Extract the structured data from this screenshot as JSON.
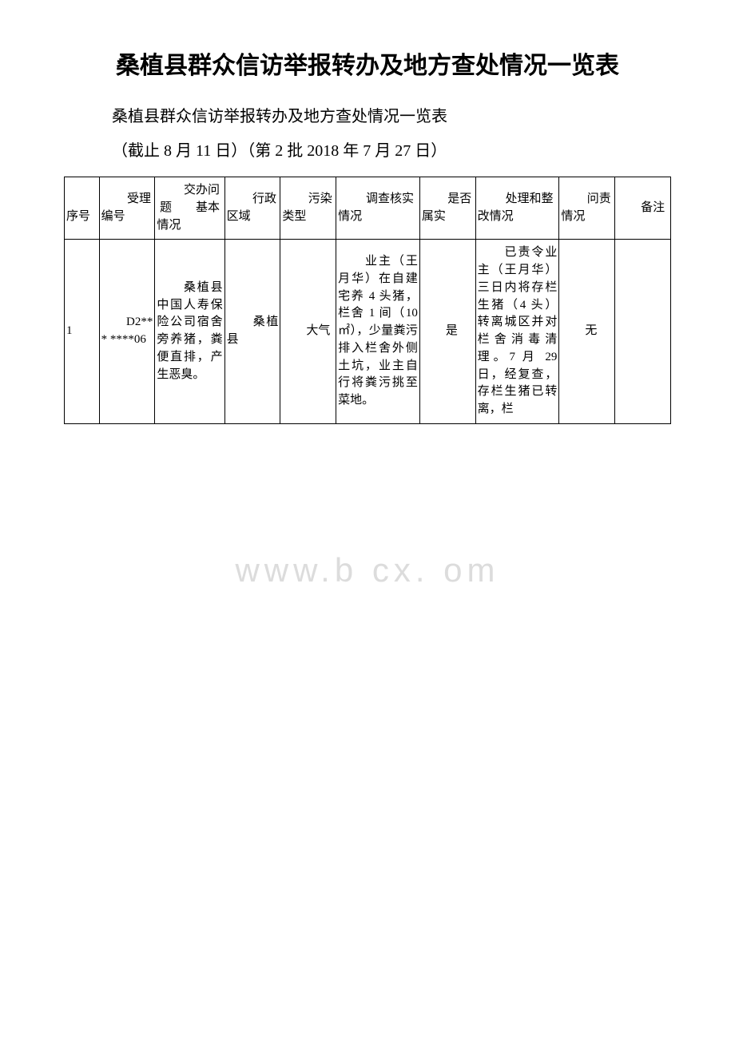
{
  "title": "桑植县群众信访举报转办及地方查处情况一览表",
  "subtitle": "桑植县群众信访举报转办及地方查处情况一览表",
  "dateline": "（截止 8 月 11 日）（第 2 批 2018 年 7 月 27 日）",
  "watermark": "www.b   cx.  om",
  "table": {
    "headers": {
      "seq": "　　序号",
      "id": "　　受理编号",
      "basic": "　　交办问题　　基本情况",
      "area": "　　行政　　区域",
      "type": "　　污染类型",
      "inv": "　　调查核实情况",
      "true": "　　是否属实",
      "fix": "　　处理和整改情况",
      "acc": "　　问责情况",
      "note": "　　备注"
    },
    "rows": [
      {
        "seq": "1",
        "id": "　　D2*** ****06",
        "basic": "　　桑植县中国人寿保险公司宿舍旁养猪，粪便直排，产生恶臭。",
        "area": "　　桑植县",
        "type": "　　大气",
        "inv": "　　业主（王月华）在自建宅养 4 头猪，栏舍 1 间（10㎡），少量粪污排入栏舍外侧土坑，业主自行将粪污挑至菜地。",
        "true": "　　是",
        "fix": "　　已责令业主（王月华）三日内将存栏生猪（4 头）转离城区并对栏舍消毒清理。7 月 29 日，经复查，存栏生猪已转离，栏",
        "acc": "　　无",
        "note": ""
      }
    ]
  }
}
